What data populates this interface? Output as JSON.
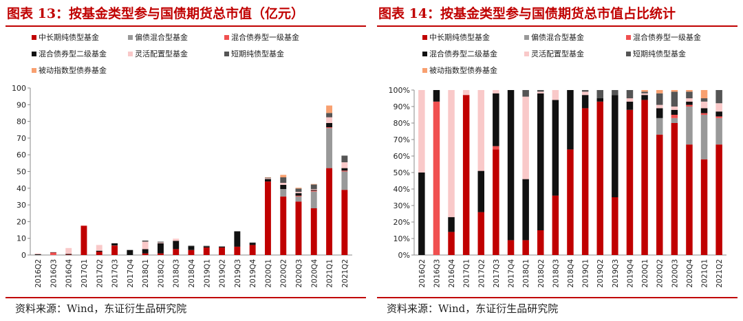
{
  "categories": [
    "2016Q2",
    "2016Q3",
    "2016Q4",
    "2017Q1",
    "2017Q2",
    "2017Q3",
    "2017Q4",
    "2018Q1",
    "2018Q2",
    "2018Q3",
    "2018Q4",
    "2019Q1",
    "2019Q2",
    "2019Q3",
    "2019Q4",
    "2020Q1",
    "2020Q2",
    "2020Q3",
    "2020Q4",
    "2021Q1",
    "2021Q2"
  ],
  "legend": [
    "中长期纯债型基金",
    "偏债混合型基金",
    "混合债券型一级基金",
    "混合债券型二级基金",
    "灵活配置型基金",
    "短期纯债型基金",
    "被动指数型债券基金"
  ],
  "colors": [
    "#c00000",
    "#999999",
    "#f05050",
    "#111111",
    "#f9c9c9",
    "#555555",
    "#f8a070"
  ],
  "chart_data": [
    {
      "type": "bar",
      "stacked": true,
      "title": "图表 13：按基金类型参与国债期货总市值（亿元）",
      "source": "资料来源：Wind，东证衍生品研究院",
      "ylim": [
        0,
        100
      ],
      "yticks": [
        "0",
        "10",
        "20",
        "30",
        "40",
        "50",
        "60",
        "70",
        "80",
        "90",
        "100"
      ],
      "legend_position": "top",
      "grid": false,
      "series": [
        {
          "name": "中长期纯债型基金",
          "values": [
            0,
            0,
            0.2,
            17.5,
            2,
            5.5,
            0,
            1,
            1,
            3.5,
            3,
            4.5,
            4.5,
            5,
            6,
            44,
            35,
            32,
            28,
            52,
            39
          ]
        },
        {
          "name": "偏债混合型基金",
          "values": [
            0,
            0,
            0,
            0,
            0,
            0,
            0,
            0,
            0,
            0,
            0,
            0,
            0,
            0,
            0,
            0,
            4.5,
            3,
            10,
            24,
            11
          ]
        },
        {
          "name": "混合债券型一级基金",
          "values": [
            0,
            1.5,
            0,
            0,
            0,
            0.2,
            0,
            0,
            0,
            0,
            0,
            0,
            0,
            0,
            0,
            0,
            0,
            0.5,
            0.5,
            0.5,
            0.5
          ]
        },
        {
          "name": "混合债券型二级基金",
          "values": [
            0.5,
            0.2,
            0.4,
            0,
            0.6,
            1.3,
            3,
            2.5,
            6,
            5,
            2.3,
            0.7,
            0.5,
            9,
            1.2,
            1.5,
            2.5,
            1.5,
            0.5,
            2.5,
            1.5
          ]
        },
        {
          "name": "灵活配置型基金",
          "values": [
            0.5,
            0,
            3.6,
            0.3,
            3.4,
            0,
            0,
            4.5,
            0.5,
            1.3,
            0,
            0,
            0,
            0,
            0,
            0.5,
            1.2,
            0.8,
            0.5,
            3.5,
            3.5
          ]
        },
        {
          "name": "短期纯债型基金",
          "values": [
            0,
            0,
            0,
            0,
            0,
            0,
            0,
            0.7,
            0.5,
            0,
            0.3,
            0.3,
            0.2,
            0.3,
            0.3,
            0.3,
            3.3,
            2,
            2.7,
            2.5,
            4
          ]
        },
        {
          "name": "被动指数型债券基金",
          "values": [
            0,
            0,
            0,
            0,
            0,
            0,
            0,
            0,
            0,
            0,
            0,
            0,
            0,
            0,
            0,
            0.2,
            1.5,
            0.5,
            0.3,
            4.5,
            0
          ]
        }
      ]
    },
    {
      "type": "bar",
      "stacked": true,
      "percent": true,
      "title": "图表 14：按基金类型参与国债期货总市值占比统计",
      "source": "资料来源：Wind，东证衍生品研究院",
      "ylim": [
        0,
        100
      ],
      "yticks": [
        "0%",
        "10%",
        "20%",
        "30%",
        "40%",
        "50%",
        "60%",
        "70%",
        "80%",
        "90%",
        "100%"
      ],
      "legend_position": "top",
      "grid": false,
      "series": [
        {
          "name": "中长期纯债型基金",
          "values": [
            0,
            0,
            14,
            97,
            26,
            64,
            9,
            9,
            15,
            36,
            64,
            89,
            93,
            35,
            88,
            94,
            73,
            80,
            67,
            58,
            67
          ]
        },
        {
          "name": "偏债混合型基金",
          "values": [
            0,
            0,
            0,
            0,
            0,
            0,
            0,
            0,
            0,
            0,
            0,
            0,
            0,
            0,
            0,
            0,
            10,
            3,
            23,
            27,
            16
          ]
        },
        {
          "name": "混合债券型一级基金",
          "values": [
            0,
            93,
            0,
            0,
            0,
            2,
            0,
            0,
            0,
            0,
            0,
            0,
            0,
            0,
            0,
            0,
            0,
            2,
            1,
            1,
            1
          ]
        },
        {
          "name": "混合债券型二级基金",
          "values": [
            50,
            7,
            9,
            0,
            25,
            32,
            91,
            37,
            83,
            58,
            36,
            8,
            2,
            62,
            5,
            3,
            6,
            3,
            2,
            3,
            3
          ]
        },
        {
          "name": "灵活配置型基金",
          "values": [
            50,
            0,
            77,
            3,
            49,
            2,
            0,
            50,
            1,
            6,
            0,
            2,
            0,
            0,
            2,
            1,
            2,
            2,
            2,
            4,
            5
          ]
        },
        {
          "name": "短期纯债型基金",
          "values": [
            0,
            0,
            0,
            0,
            0,
            0,
            0,
            4,
            1,
            0,
            0,
            1,
            5,
            3,
            5,
            1,
            7,
            9,
            4,
            2,
            8
          ]
        },
        {
          "name": "被动指数型债券基金",
          "values": [
            0,
            0,
            0,
            0,
            0,
            0,
            0,
            0,
            0,
            0,
            0,
            0,
            0,
            0,
            0,
            1,
            2,
            1,
            1,
            5,
            0
          ]
        }
      ]
    }
  ]
}
